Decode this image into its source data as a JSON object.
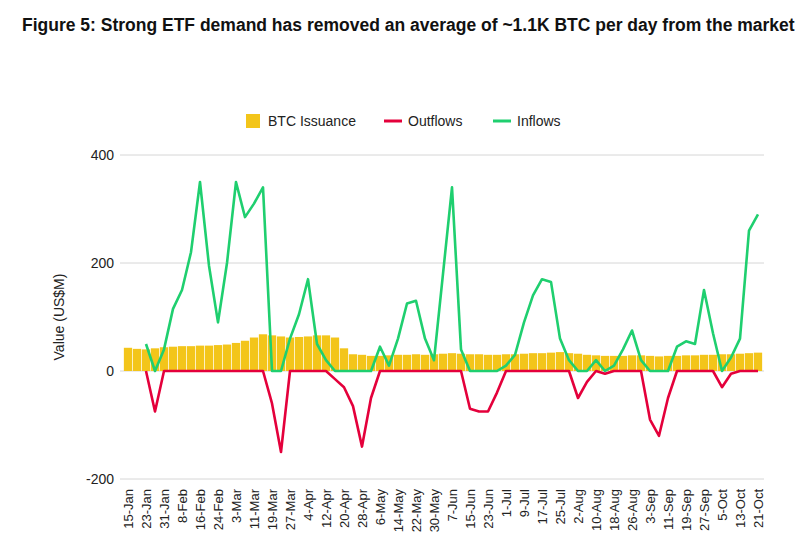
{
  "chart_data": {
    "type": "line",
    "title": "Figure 5: Strong ETF demand has removed an average of ~1.1K BTC per day from the market",
    "y_label": "Value (US$M)",
    "categories": [
      "15-Jan",
      null,
      "23-Jan",
      null,
      "31-Jan",
      null,
      "8-Feb",
      null,
      "16-Feb",
      null,
      "24-Feb",
      null,
      "3-Mar",
      null,
      "11-Mar",
      null,
      "19-Mar",
      null,
      "27-Mar",
      null,
      "4-Apr",
      null,
      "12-Apr",
      null,
      "20-Apr",
      null,
      "28-Apr",
      null,
      "6-May",
      null,
      "14-May",
      null,
      "22-May",
      null,
      "30-May",
      null,
      "7-Jun",
      null,
      "15-Jun",
      null,
      "23-Jun",
      null,
      "1-Jul",
      null,
      "9-Jul",
      null,
      "17-Jul",
      null,
      "25-Jul",
      null,
      "2-Aug",
      null,
      "10-Aug",
      null,
      "18-Aug",
      null,
      "26-Aug",
      null,
      "3-Sep",
      null,
      "11-Sep",
      null,
      "19-Sep",
      null,
      "27-Sep",
      null,
      "5-Oct",
      null,
      "13-Oct",
      null,
      "21-Oct"
    ],
    "series": [
      {
        "name": "BTC Issuance",
        "type": "bar",
        "color": "#f3c51a",
        "values": [
          43,
          41,
          40,
          42,
          44,
          45,
          46,
          46,
          47,
          47,
          48,
          49,
          52,
          56,
          62,
          68,
          66,
          64,
          62,
          63,
          64,
          66,
          66,
          62,
          42,
          31,
          30,
          28,
          28,
          29,
          30,
          30,
          31,
          30,
          31,
          32,
          33,
          32,
          31,
          31,
          30,
          30,
          31,
          31,
          32,
          33,
          33,
          34,
          35,
          33,
          32,
          30,
          29,
          28,
          28,
          28,
          29,
          29,
          28,
          27,
          28,
          28,
          29,
          29,
          30,
          30,
          31,
          31,
          32,
          33,
          34
        ]
      },
      {
        "name": "Outflows",
        "type": "line",
        "color": "#e4003b",
        "values": [
          null,
          null,
          0,
          -75,
          0,
          0,
          0,
          0,
          0,
          0,
          0,
          0,
          0,
          0,
          0,
          0,
          -60,
          -150,
          0,
          0,
          0,
          0,
          0,
          -15,
          -30,
          -65,
          -140,
          -50,
          0,
          0,
          0,
          0,
          0,
          0,
          0,
          0,
          0,
          0,
          -70,
          -75,
          -75,
          -40,
          0,
          0,
          0,
          0,
          0,
          0,
          0,
          0,
          -50,
          -20,
          0,
          -5,
          0,
          0,
          0,
          0,
          -90,
          -120,
          -50,
          0,
          0,
          0,
          0,
          0,
          -30,
          -5,
          0,
          0,
          0
        ]
      },
      {
        "name": "Inflows",
        "type": "line",
        "color": "#1fcf6f",
        "values": [
          null,
          null,
          50,
          0,
          40,
          115,
          150,
          220,
          350,
          195,
          90,
          200,
          350,
          285,
          310,
          340,
          0,
          0,
          60,
          105,
          170,
          50,
          20,
          0,
          0,
          0,
          0,
          0,
          45,
          10,
          60,
          125,
          130,
          60,
          20,
          180,
          340,
          40,
          0,
          0,
          0,
          0,
          10,
          30,
          90,
          140,
          170,
          165,
          60,
          20,
          0,
          0,
          20,
          0,
          10,
          40,
          75,
          20,
          0,
          0,
          0,
          45,
          55,
          50,
          150,
          70,
          0,
          25,
          60,
          260,
          290
        ]
      }
    ],
    "ylim": [
      -200,
      400
    ],
    "yticks": [
      -200,
      0,
      200,
      400
    ],
    "grid": true,
    "legend": "top"
  }
}
